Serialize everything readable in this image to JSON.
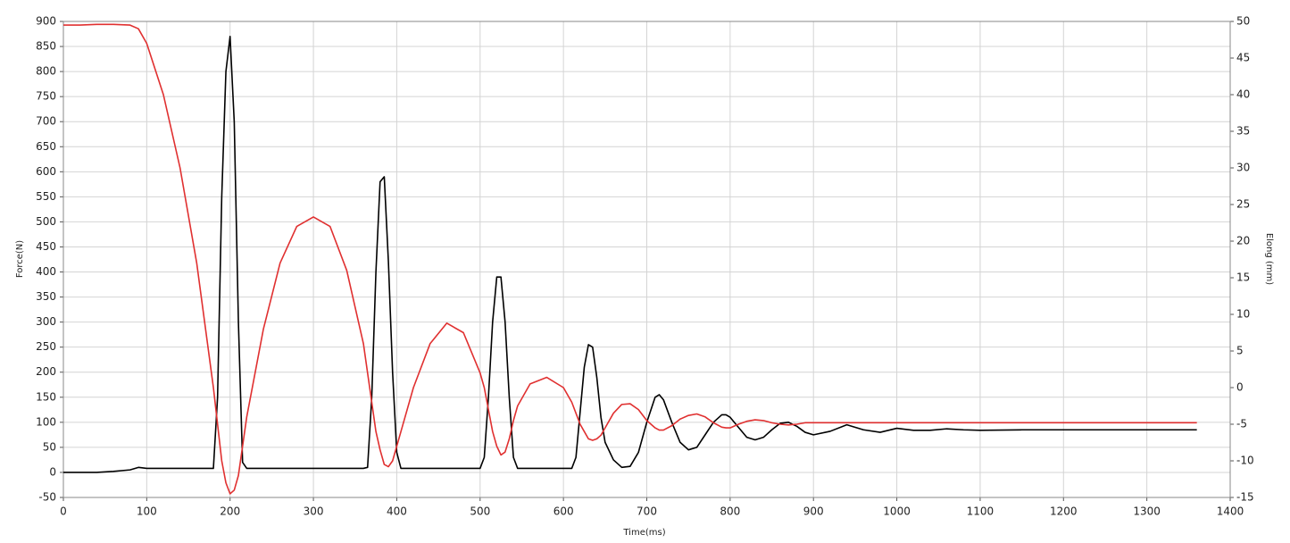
{
  "chart_data": {
    "type": "line",
    "x_label": "Time(ms)",
    "y_label": "Force(N)",
    "y2_label": "Elong (mm)",
    "x": [
      0,
      20,
      40,
      60,
      80,
      90,
      100,
      120,
      140,
      160,
      180,
      185,
      190,
      195,
      200,
      205,
      210,
      215,
      220,
      240,
      260,
      280,
      300,
      320,
      340,
      360,
      365,
      370,
      375,
      380,
      385,
      390,
      395,
      400,
      405,
      420,
      440,
      460,
      480,
      500,
      505,
      510,
      515,
      520,
      525,
      530,
      535,
      540,
      545,
      560,
      580,
      600,
      610,
      615,
      620,
      625,
      630,
      635,
      640,
      645,
      650,
      660,
      670,
      680,
      690,
      700,
      710,
      715,
      720,
      730,
      740,
      750,
      760,
      770,
      780,
      790,
      795,
      800,
      810,
      820,
      830,
      840,
      850,
      860,
      870,
      880,
      890,
      900,
      920,
      940,
      960,
      980,
      1000,
      1020,
      1040,
      1060,
      1080,
      1100,
      1150,
      1200,
      1250,
      1300,
      1360
    ],
    "series": [
      {
        "color": "#000000",
        "values": [
          0,
          0,
          0,
          2,
          5,
          10,
          8,
          8,
          8,
          8,
          8,
          150,
          550,
          800,
          870,
          700,
          300,
          20,
          8,
          8,
          8,
          8,
          8,
          8,
          8,
          8,
          10,
          150,
          400,
          580,
          590,
          420,
          200,
          40,
          8,
          8,
          8,
          8,
          8,
          8,
          30,
          150,
          300,
          390,
          390,
          300,
          150,
          30,
          8,
          8,
          8,
          8,
          8,
          30,
          120,
          210,
          255,
          250,
          190,
          110,
          60,
          25,
          10,
          12,
          40,
          100,
          150,
          155,
          145,
          100,
          60,
          45,
          50,
          75,
          100,
          115,
          115,
          110,
          90,
          70,
          65,
          70,
          85,
          98,
          100,
          92,
          80,
          75,
          82,
          95,
          85,
          80,
          88,
          84,
          84,
          87,
          85,
          84,
          85,
          85,
          85,
          85,
          85
        ]
      },
      {
        "color": "#e03030",
        "axis": "y2",
        "values": [
          49.5,
          49.5,
          49.6,
          49.6,
          49.5,
          49,
          47,
          40,
          30,
          17,
          0,
          -5,
          -10,
          -13,
          -14.5,
          -14,
          -12,
          -8,
          -4,
          8,
          17,
          22,
          23.3,
          22,
          16,
          6,
          2,
          -2,
          -6,
          -8.5,
          -10.5,
          -10.8,
          -10,
          -8,
          -6,
          0,
          6,
          8.8,
          7.5,
          2,
          0,
          -3,
          -6,
          -8,
          -9.2,
          -8.8,
          -7,
          -4.5,
          -2.5,
          0.5,
          1.4,
          0,
          -2,
          -3.5,
          -5,
          -6,
          -7,
          -7.2,
          -7,
          -6.5,
          -5.5,
          -3.5,
          -2.3,
          -2.2,
          -3,
          -4.5,
          -5.5,
          -5.8,
          -5.8,
          -5.2,
          -4.3,
          -3.8,
          -3.6,
          -4,
          -4.8,
          -5.4,
          -5.5,
          -5.5,
          -5,
          -4.6,
          -4.4,
          -4.5,
          -4.8,
          -5,
          -5.1,
          -5,
          -4.8,
          -4.8,
          -4.8,
          -4.8,
          -4.8,
          -4.8,
          -4.8,
          -4.8,
          -4.8,
          -4.8,
          -4.8,
          -4.8,
          -4.8,
          -4.8,
          -4.8,
          -4.8,
          -4.8
        ]
      }
    ],
    "xlim": [
      0,
      1400
    ],
    "xticks": [
      0,
      100,
      200,
      300,
      400,
      500,
      600,
      700,
      800,
      900,
      1000,
      1100,
      1200,
      1300,
      1400
    ],
    "ylim": [
      -50,
      900
    ],
    "yticks": [
      -50,
      0,
      50,
      100,
      150,
      200,
      250,
      300,
      350,
      400,
      450,
      500,
      550,
      600,
      650,
      700,
      750,
      800,
      850,
      900
    ],
    "y2lim": [
      -15,
      50
    ],
    "y2ticks": [
      -15,
      -10,
      -5,
      0,
      5,
      10,
      15,
      20,
      25,
      30,
      35,
      40,
      45,
      50
    ],
    "grid": true
  }
}
